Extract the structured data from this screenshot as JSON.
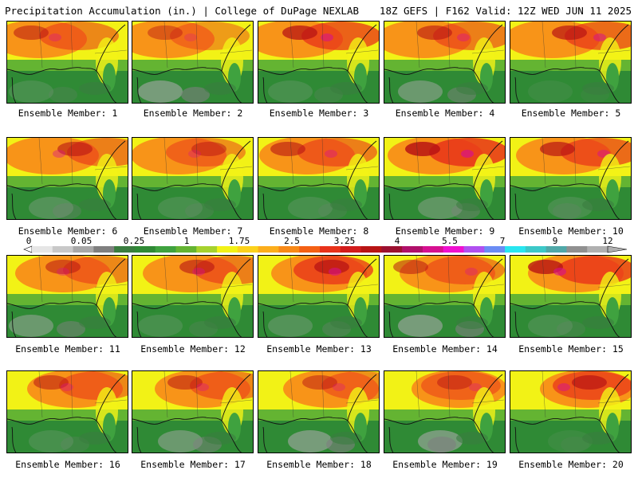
{
  "header": {
    "title": "Precipitation Accumulation (in.) | College of DuPage NEXLAB",
    "run_info": "18Z GEFS | F162 Valid: 12Z WED JUN 11 2025"
  },
  "colorbar": {
    "tick_labels": [
      "0",
      "0.05",
      "0.25",
      "1",
      "1.75",
      "2.5",
      "3.25",
      "4",
      "5.5",
      "7",
      "9",
      "12"
    ],
    "colors": [
      "#e6e6e6",
      "#c8c8c8",
      "#a8a8a8",
      "#7f7f7f",
      "#3a7d3f",
      "#2f8a35",
      "#3fa23f",
      "#64b432",
      "#a6d22e",
      "#f2f216",
      "#fcd21c",
      "#fcae1c",
      "#f88a18",
      "#f46014",
      "#e8321a",
      "#d21c1c",
      "#b81414",
      "#9c1030",
      "#b0106a",
      "#d61090",
      "#f010d0",
      "#b050f0",
      "#6a8cf4",
      "#28e6f0",
      "#3cc8c8",
      "#50a8a8",
      "#909090",
      "#b0b0b0"
    ]
  },
  "members": [
    {
      "label": "Ensemble Member: 1"
    },
    {
      "label": "Ensemble Member: 2"
    },
    {
      "label": "Ensemble Member: 3"
    },
    {
      "label": "Ensemble Member: 4"
    },
    {
      "label": "Ensemble Member: 5"
    },
    {
      "label": "Ensemble Member: 6"
    },
    {
      "label": "Ensemble Member: 7"
    },
    {
      "label": "Ensemble Member: 8"
    },
    {
      "label": "Ensemble Member: 9"
    },
    {
      "label": "Ensemble Member: 10"
    },
    {
      "label": "Ensemble Member: 11"
    },
    {
      "label": "Ensemble Member: 12"
    },
    {
      "label": "Ensemble Member: 13"
    },
    {
      "label": "Ensemble Member: 14"
    },
    {
      "label": "Ensemble Member: 15"
    },
    {
      "label": "Ensemble Member: 16"
    },
    {
      "label": "Ensemble Member: 17"
    },
    {
      "label": "Ensemble Member: 18"
    },
    {
      "label": "Ensemble Member: 19"
    },
    {
      "label": "Ensemble Member: 20"
    }
  ]
}
